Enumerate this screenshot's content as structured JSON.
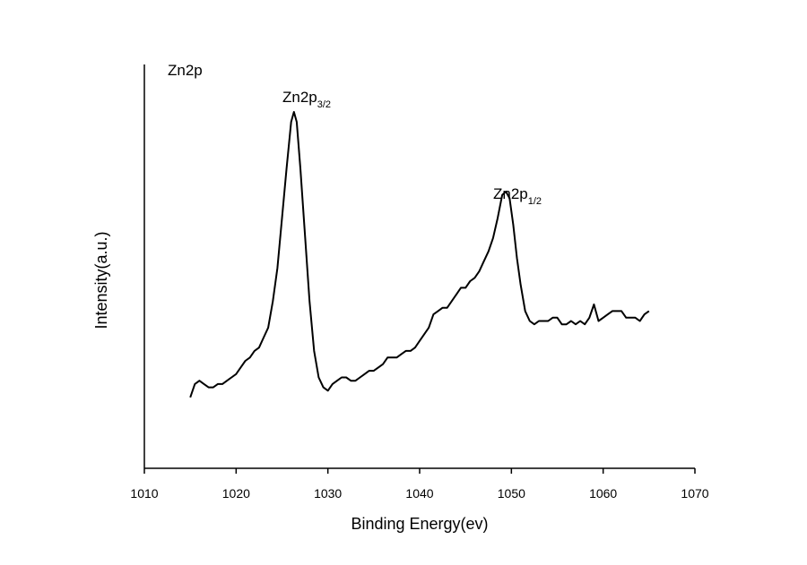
{
  "chart_data": {
    "type": "line",
    "title": "Zn2p",
    "xlabel": "Binding Energy(ev)",
    "ylabel": "Intensity(a.u.)",
    "xlim": [
      1010,
      1070
    ],
    "x_ticks": [
      1010,
      1020,
      1030,
      1040,
      1050,
      1060,
      1070
    ],
    "ylim": [
      0,
      100
    ],
    "y_ticks_shown": false,
    "grid": false,
    "color": "#000000",
    "annotations": [
      {
        "base": "Zn2p",
        "sub": "3/2",
        "x": 1026.3
      },
      {
        "base": "Zn2p",
        "sub": "1/2",
        "x": 1049.4
      }
    ],
    "series": [
      {
        "x": [
          1015,
          1015.5,
          1016,
          1016.5,
          1017,
          1017.5,
          1018,
          1018.5,
          1019,
          1019.5,
          1020,
          1020.5,
          1021,
          1021.5,
          1022,
          1022.5,
          1023,
          1023.5,
          1024,
          1024.5,
          1025,
          1025.5,
          1026,
          1026.3,
          1026.6,
          1027,
          1027.5,
          1028,
          1028.5,
          1029,
          1029.5,
          1030,
          1030.5,
          1031,
          1031.5,
          1032,
          1032.5,
          1033,
          1033.5,
          1034,
          1034.5,
          1035,
          1035.5,
          1036,
          1036.5,
          1037,
          1037.5,
          1038,
          1038.5,
          1039,
          1039.5,
          1040,
          1040.5,
          1041,
          1041.5,
          1042,
          1042.5,
          1043,
          1043.5,
          1044,
          1044.5,
          1045,
          1045.5,
          1046,
          1046.5,
          1047,
          1047.5,
          1048,
          1048.5,
          1049,
          1049.4,
          1049.8,
          1050.2,
          1050.6,
          1051,
          1051.5,
          1052,
          1052.5,
          1053,
          1053.5,
          1054,
          1054.5,
          1055,
          1055.5,
          1056,
          1056.5,
          1057,
          1057.5,
          1058,
          1058.5,
          1059,
          1059.5,
          1060,
          1060.5,
          1061,
          1061.5,
          1062,
          1062.5,
          1063,
          1063.5,
          1064,
          1064.5,
          1065
        ],
        "y": [
          6,
          10,
          11,
          10,
          9,
          9,
          10,
          10,
          11,
          12,
          13,
          15,
          17,
          18,
          20,
          21,
          24,
          27,
          35,
          45,
          60,
          75,
          89,
          92,
          89,
          75,
          55,
          35,
          20,
          12,
          9,
          8,
          10,
          11,
          12,
          12,
          11,
          11,
          12,
          13,
          14,
          14,
          15,
          16,
          18,
          18,
          18,
          19,
          20,
          20,
          21,
          23,
          25,
          27,
          31,
          32,
          33,
          33,
          35,
          37,
          39,
          39,
          41,
          42,
          44,
          47,
          50,
          54,
          60,
          67,
          68,
          66,
          58,
          48,
          40,
          32,
          29,
          28,
          29,
          29,
          29,
          30,
          30,
          28,
          28,
          29,
          28,
          29,
          28,
          30,
          34,
          29,
          30,
          31,
          32,
          32,
          32,
          30,
          30,
          30,
          29,
          31,
          32
        ]
      }
    ]
  }
}
